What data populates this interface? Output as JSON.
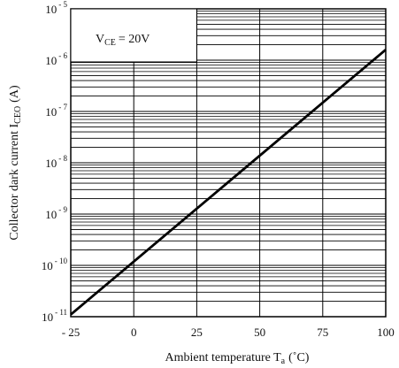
{
  "chart_data": {
    "type": "line",
    "title": "",
    "xlabel": {
      "main": "Ambient temperature T",
      "sub": "a",
      "unit": "(˚C)"
    },
    "ylabel": {
      "main": "Collector dark current I",
      "sub": "CEO",
      "unit": "(A)"
    },
    "x_ticks": [
      -25,
      0,
      25,
      50,
      75,
      100
    ],
    "x_tick_labels": [
      "- 25",
      "0",
      "25",
      "50",
      "75",
      "100"
    ],
    "xlim": [
      -25,
      100
    ],
    "y_scale": "log",
    "ylim": [
      1e-11,
      1e-05
    ],
    "y_ticks": [
      {
        "value": 1e-11,
        "base": "10",
        "exp": "- 11"
      },
      {
        "value": 1e-10,
        "base": "10",
        "exp": "- 10"
      },
      {
        "value": 1e-09,
        "base": "10",
        "exp": "- 9"
      },
      {
        "value": 1e-08,
        "base": "10",
        "exp": "- 8"
      },
      {
        "value": 1e-07,
        "base": "10",
        "exp": "- 7"
      },
      {
        "value": 1e-06,
        "base": "10",
        "exp": "- 6"
      },
      {
        "value": 1e-05,
        "base": "10",
        "exp": "- 5"
      }
    ],
    "grid": true,
    "annotation": {
      "main": "V",
      "sub": "CE",
      "rest": "= 20V"
    },
    "series": [
      {
        "x": [
          -25,
          100
        ],
        "y": [
          1.1e-11,
          1.6e-06
        ],
        "color": "#000000"
      }
    ]
  }
}
